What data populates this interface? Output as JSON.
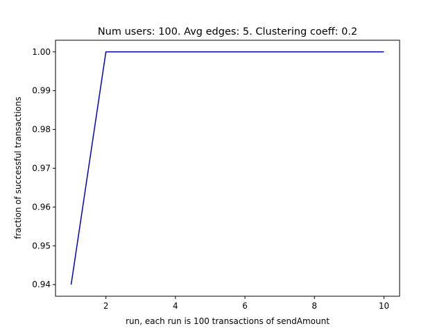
{
  "chart_data": {
    "type": "line",
    "title": "Num users: 100. Avg edges: 5. Clustering coeff: 0.2",
    "xlabel": "run, each run is 100 transactions of sendAmount",
    "ylabel": "fraction of successful transactions",
    "x": [
      1,
      2,
      3,
      4,
      5,
      6,
      7,
      8,
      9,
      10
    ],
    "series": [
      {
        "values": [
          0.94,
          1.0,
          1.0,
          1.0,
          1.0,
          1.0,
          1.0,
          1.0,
          1.0,
          1.0
        ],
        "color": "#0000cc"
      }
    ],
    "xlim": [
      0.55,
      10.45
    ],
    "ylim": [
      0.937,
      1.003
    ],
    "xticks": [
      2,
      4,
      6,
      8,
      10
    ],
    "yticks": [
      0.94,
      0.95,
      0.96,
      0.97,
      0.98,
      0.99,
      1.0
    ],
    "xtick_labels": [
      "2",
      "4",
      "6",
      "8",
      "10"
    ],
    "ytick_labels": [
      "0.94",
      "0.95",
      "0.96",
      "0.97",
      "0.98",
      "0.99",
      "1.00"
    ],
    "grid": false,
    "legend": false
  }
}
